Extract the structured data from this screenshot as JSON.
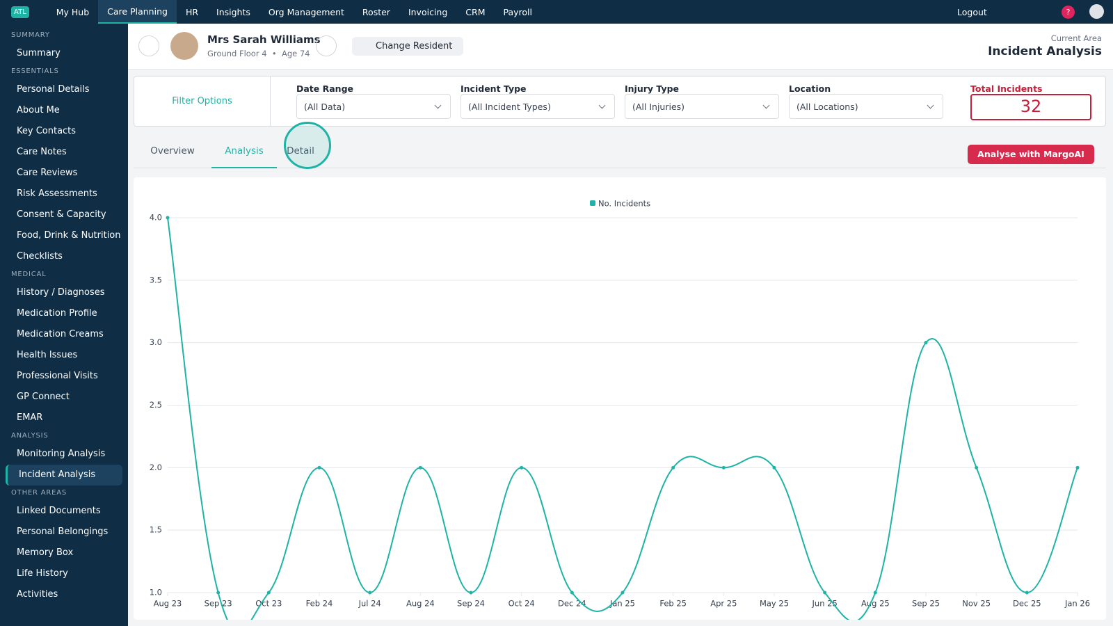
{
  "nav": {
    "logo": "ATL",
    "items": [
      "My Hub",
      "Care Planning",
      "HR",
      "Insights",
      "Org Management",
      "Roster",
      "Invoicing",
      "CRM",
      "Payroll"
    ],
    "logout": "Logout",
    "help": "?"
  },
  "sidebar": [
    {
      "heading": "SUMMARY",
      "items": [
        "Summary"
      ]
    },
    {
      "heading": "ESSENTIALS",
      "items": [
        "Personal Details",
        "About Me",
        "Key Contacts",
        "Care Notes",
        "Care Reviews",
        "Risk Assessments",
        "Consent & Capacity",
        "Food, Drink & Nutrition",
        "Checklists"
      ]
    },
    {
      "heading": "MEDICAL",
      "items": [
        "History / Diagnoses",
        "Medication Profile",
        "Medication Creams",
        "Health Issues",
        "Professional Visits",
        "GP Connect",
        "EMAR"
      ]
    },
    {
      "heading": "ANALYSIS",
      "items": [
        "Monitoring Analysis",
        "Incident Analysis"
      ]
    },
    {
      "heading": "OTHER AREAS",
      "items": [
        "Linked Documents",
        "Personal Belongings",
        "Memory Box",
        "Life History",
        "Activities"
      ]
    }
  ],
  "resident": {
    "name": "Mrs Sarah Williams",
    "floor": "Ground Floor 4",
    "age": "Age 74",
    "change_button": "Change Resident"
  },
  "current_area": {
    "label": "Current Area",
    "title": "Incident Analysis"
  },
  "filters": {
    "title": "Filter Options",
    "fields": [
      {
        "label": "Date Range",
        "value": "(All Data)"
      },
      {
        "label": "Incident Type",
        "value": "(All Incident Types)"
      },
      {
        "label": "Injury Type",
        "value": "(All Injuries)"
      },
      {
        "label": "Location",
        "value": "(All Locations)"
      }
    ],
    "total": {
      "label": "Total Incidents",
      "value": 32
    }
  },
  "tabs": [
    "Overview",
    "Analysis",
    "Detail"
  ],
  "analyse_button": "Analyse with MargoAI",
  "chart_data": {
    "type": "line",
    "categories": [
      "Aug 23",
      "Sep 23",
      "Oct 23",
      "Feb 24",
      "Jul 24",
      "Aug 24",
      "Sep 24",
      "Oct 24",
      "Dec 24",
      "Jan 25",
      "Feb 25",
      "Apr 25",
      "May 25",
      "Jun 25",
      "Aug 25",
      "Sep 25",
      "Nov 25",
      "Dec 25",
      "Jan 26"
    ],
    "series": [
      {
        "name": "No. Incidents",
        "color": "#1fb3a6",
        "values": [
          4,
          1,
          1,
          2,
          1,
          2,
          1,
          2,
          1,
          1,
          2,
          2,
          2,
          1,
          1,
          3,
          2,
          1,
          2
        ]
      }
    ],
    "ylim": [
      1,
      4
    ],
    "yticks": [
      {
        "value": 1,
        "label": "1.0"
      },
      1.5,
      {
        "value": 2,
        "label": "2.0"
      },
      2.5,
      {
        "value": 3,
        "label": "3.0"
      },
      3.5,
      {
        "value": 4,
        "label": "4.0"
      }
    ],
    "grid": true,
    "legend": "top"
  }
}
